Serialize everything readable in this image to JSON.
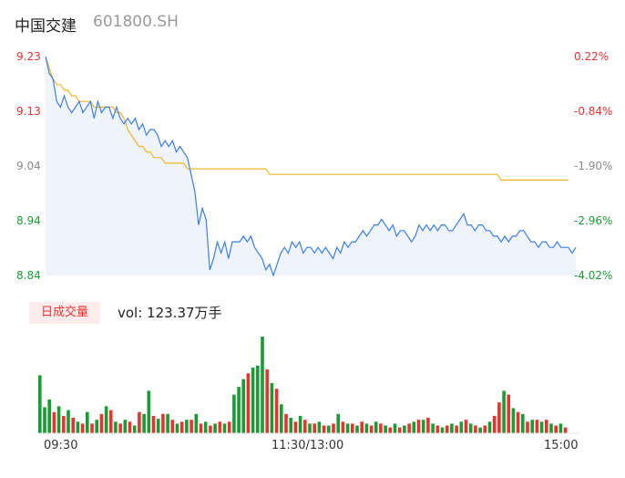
{
  "header": {
    "name": "中国交建",
    "code": "601800.SH"
  },
  "badge": "日成交量",
  "volume_text": "vol: 123.37万手",
  "colors": {
    "up": "#e8322f",
    "down": "#1a9c35",
    "flat": "#8a8a8a",
    "price_line": "#3a7ee8",
    "avg_line": "#f0b429"
  },
  "chart_data": [
    {
      "type": "line",
      "y_ticks_left": [
        "9.23",
        "9.13",
        "9.04",
        "8.94",
        "8.84"
      ],
      "y_ticks_right": [
        "0.22%",
        "-0.84%",
        "-1.90%",
        "-2.96%",
        "-4.02%"
      ],
      "ylim": [
        8.84,
        9.23
      ],
      "x_ticks": [
        "09:30",
        "11:30/13:00",
        "15:00"
      ],
      "series": [
        {
          "name": "price",
          "values": [
            9.23,
            9.2,
            9.19,
            9.15,
            9.14,
            9.16,
            9.14,
            9.13,
            9.14,
            9.15,
            9.13,
            9.14,
            9.15,
            9.12,
            9.15,
            9.13,
            9.14,
            9.14,
            9.12,
            9.14,
            9.12,
            9.11,
            9.12,
            9.11,
            9.12,
            9.1,
            9.11,
            9.09,
            9.1,
            9.1,
            9.09,
            9.07,
            9.08,
            9.07,
            9.08,
            9.06,
            9.07,
            9.06,
            9.05,
            9.02,
            8.99,
            8.93,
            8.96,
            8.94,
            8.85,
            8.87,
            8.9,
            8.88,
            8.9,
            8.87,
            8.9,
            8.9,
            8.9,
            8.91,
            8.9,
            8.91,
            8.89,
            8.88,
            8.87,
            8.85,
            8.86,
            8.84,
            8.86,
            8.88,
            8.89,
            8.88,
            8.9,
            8.89,
            8.9,
            8.88,
            8.89,
            8.89,
            8.88,
            8.89,
            8.88,
            8.89,
            8.88,
            8.87,
            8.89,
            8.88,
            8.9,
            8.89,
            8.9,
            8.9,
            8.91,
            8.92,
            8.91,
            8.92,
            8.93,
            8.93,
            8.94,
            8.93,
            8.92,
            8.93,
            8.91,
            8.92,
            8.92,
            8.91,
            8.9,
            8.91,
            8.93,
            8.92,
            8.93,
            8.92,
            8.93,
            8.92,
            8.93,
            8.93,
            8.92,
            8.92,
            8.93,
            8.94,
            8.95,
            8.93,
            8.93,
            8.92,
            8.93,
            8.93,
            8.92,
            8.92,
            8.91,
            8.91,
            8.9,
            8.91,
            8.9,
            8.91,
            8.91,
            8.92,
            8.92,
            8.91,
            8.9,
            8.9,
            8.89,
            8.9,
            8.9,
            8.89,
            8.89,
            8.9,
            8.89,
            8.89,
            8.89,
            8.88,
            8.89
          ]
        },
        {
          "name": "average",
          "values": [
            9.23,
            9.21,
            9.19,
            9.18,
            9.18,
            9.17,
            9.17,
            9.16,
            9.16,
            9.15,
            9.15,
            9.15,
            9.15,
            9.14,
            9.14,
            9.14,
            9.14,
            9.14,
            9.14,
            9.13,
            9.13,
            9.12,
            9.1,
            9.09,
            9.08,
            9.07,
            9.07,
            9.06,
            9.06,
            9.05,
            9.05,
            9.05,
            9.04,
            9.04,
            9.04,
            9.04,
            9.04,
            9.04,
            9.03,
            9.03,
            9.03,
            9.03,
            9.03,
            9.03,
            9.03,
            9.03,
            9.03,
            9.03,
            9.03,
            9.03,
            9.03,
            9.03,
            9.03,
            9.03,
            9.03,
            9.03,
            9.03,
            9.03,
            9.03,
            9.03,
            9.02,
            9.02,
            9.02,
            9.02,
            9.02,
            9.02,
            9.02,
            9.02,
            9.02,
            9.02,
            9.02,
            9.02,
            9.02,
            9.02,
            9.02,
            9.02,
            9.02,
            9.02,
            9.02,
            9.02,
            9.02,
            9.02,
            9.02,
            9.02,
            9.02,
            9.02,
            9.02,
            9.02,
            9.02,
            9.02,
            9.02,
            9.02,
            9.02,
            9.02,
            9.02,
            9.02,
            9.02,
            9.02,
            9.02,
            9.02,
            9.02,
            9.02,
            9.02,
            9.02,
            9.02,
            9.02,
            9.02,
            9.02,
            9.02,
            9.02,
            9.02,
            9.02,
            9.02,
            9.02,
            9.02,
            9.02,
            9.02,
            9.02,
            9.02,
            9.02,
            9.02,
            9.02,
            9.01,
            9.01,
            9.01,
            9.01,
            9.01,
            9.01,
            9.01,
            9.01,
            9.01,
            9.01,
            9.01,
            9.01,
            9.01,
            9.01,
            9.01,
            9.01,
            9.01,
            9.01,
            9.01
          ]
        }
      ]
    },
    {
      "type": "bar",
      "values": [
        60,
        27,
        35,
        22,
        28,
        18,
        24,
        16,
        12,
        10,
        22,
        10,
        14,
        20,
        28,
        24,
        12,
        10,
        14,
        12,
        8,
        22,
        20,
        44,
        18,
        15,
        20,
        20,
        14,
        10,
        12,
        14,
        14,
        20,
        10,
        12,
        8,
        10,
        12,
        10,
        12,
        40,
        48,
        56,
        62,
        68,
        70,
        100,
        66,
        52,
        46,
        30,
        20,
        16,
        12,
        18,
        14,
        10,
        10,
        12,
        8,
        8,
        10,
        20,
        12,
        10,
        10,
        8,
        12,
        10,
        8,
        12,
        10,
        8,
        6,
        10,
        6,
        8,
        10,
        12,
        14,
        14,
        16,
        10,
        8,
        6,
        8,
        10,
        8,
        12,
        14,
        10,
        8,
        6,
        8,
        12,
        18,
        32,
        44,
        40,
        26,
        22,
        20,
        12,
        14,
        14,
        12,
        14,
        10,
        8,
        10,
        6
      ],
      "colors": [
        "down",
        "down",
        "down",
        "up",
        "down",
        "up",
        "down",
        "up",
        "down",
        "up",
        "down",
        "up",
        "down",
        "up",
        "down",
        "up",
        "down",
        "up",
        "down",
        "up",
        "down",
        "up",
        "down",
        "down",
        "up",
        "down",
        "up",
        "down",
        "up",
        "down",
        "up",
        "down",
        "up",
        "down",
        "up",
        "down",
        "up",
        "down",
        "up",
        "down",
        "up",
        "down",
        "down",
        "down",
        "up",
        "down",
        "down",
        "down",
        "up",
        "down",
        "up",
        "down",
        "up",
        "down",
        "up",
        "down",
        "up",
        "down",
        "up",
        "down",
        "up",
        "down",
        "up",
        "down",
        "up",
        "down",
        "up",
        "down",
        "up",
        "down",
        "up",
        "down",
        "up",
        "down",
        "up",
        "down",
        "up",
        "down",
        "up",
        "down",
        "up",
        "down",
        "up",
        "down",
        "up",
        "down",
        "up",
        "down",
        "up",
        "down",
        "up",
        "down",
        "up",
        "down",
        "up",
        "down",
        "up",
        "up",
        "down",
        "up",
        "down",
        "up",
        "down",
        "up",
        "down",
        "up",
        "down",
        "up",
        "down",
        "up",
        "down",
        "up"
      ],
      "ylim": [
        0,
        100
      ]
    }
  ]
}
